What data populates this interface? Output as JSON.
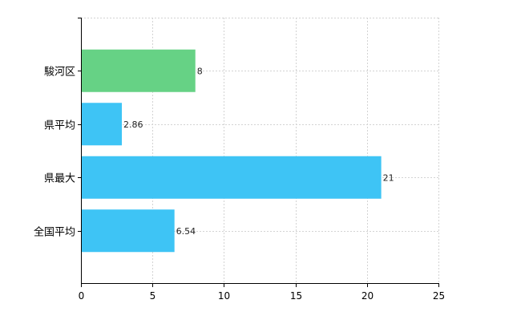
{
  "chart_data": {
    "type": "bar",
    "orientation": "horizontal",
    "categories": [
      "駿河区",
      "県平均",
      "県最大",
      "全国平均"
    ],
    "values": [
      8,
      2.86,
      21,
      6.54
    ],
    "data_labels": [
      "8",
      "2.86",
      "21",
      "6.54"
    ],
    "bar_colors": [
      "#66d285",
      "#3ec4f5",
      "#3ec4f5",
      "#3ec4f5"
    ],
    "xlim": [
      0,
      25
    ],
    "x_ticks": [
      0,
      5,
      10,
      15,
      20,
      25
    ],
    "x_tick_labels": [
      "0",
      "5",
      "10",
      "15",
      "20",
      "25"
    ],
    "grid": true,
    "grid_style": "dashed",
    "title": "",
    "xlabel": "",
    "ylabel": ""
  }
}
